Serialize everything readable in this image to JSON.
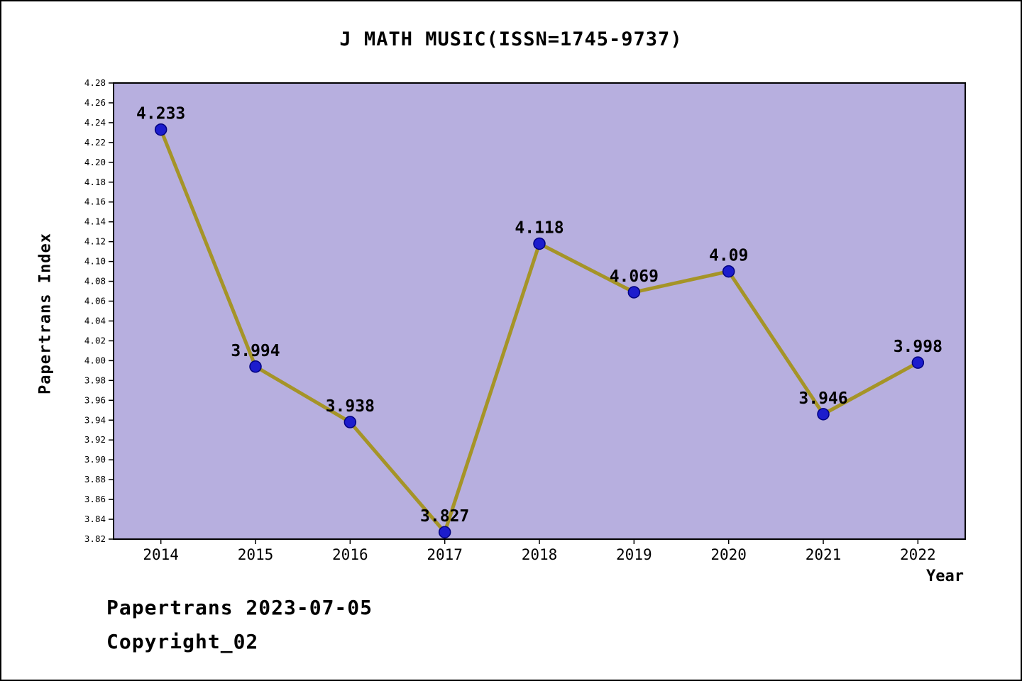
{
  "title": "J MATH MUSIC(ISSN=1745-9737)",
  "axes": {
    "ylabel": "Papertrans Index",
    "xlabel": "Year"
  },
  "footer": {
    "line1": "Papertrans 2023-07-05",
    "line2": "Copyright_02"
  },
  "chart_data": {
    "type": "line",
    "title": "J MATH MUSIC(ISSN=1745-9737)",
    "xlabel": "Year",
    "ylabel": "Papertrans Index",
    "x": [
      2014,
      2015,
      2016,
      2017,
      2018,
      2019,
      2020,
      2021,
      2022
    ],
    "values": [
      4.233,
      3.994,
      3.938,
      3.827,
      4.118,
      4.069,
      4.09,
      3.946,
      3.998
    ],
    "point_labels": [
      "4.233",
      "3.994",
      "3.938",
      "3.827",
      "4.118",
      "4.069",
      "4.09",
      "3.946",
      "3.998"
    ],
    "ylim": [
      3.82,
      4.28
    ],
    "ytick_step": 0.02,
    "xlim": [
      2013.5,
      2022.5
    ],
    "grid": false,
    "legend": "none",
    "colors": {
      "plot_bg": "#b7afdf",
      "line": "#a59427",
      "marker_fill": "#1c1ccd",
      "marker_edge": "#000080",
      "axis": "#000000",
      "text": "#000000"
    }
  }
}
